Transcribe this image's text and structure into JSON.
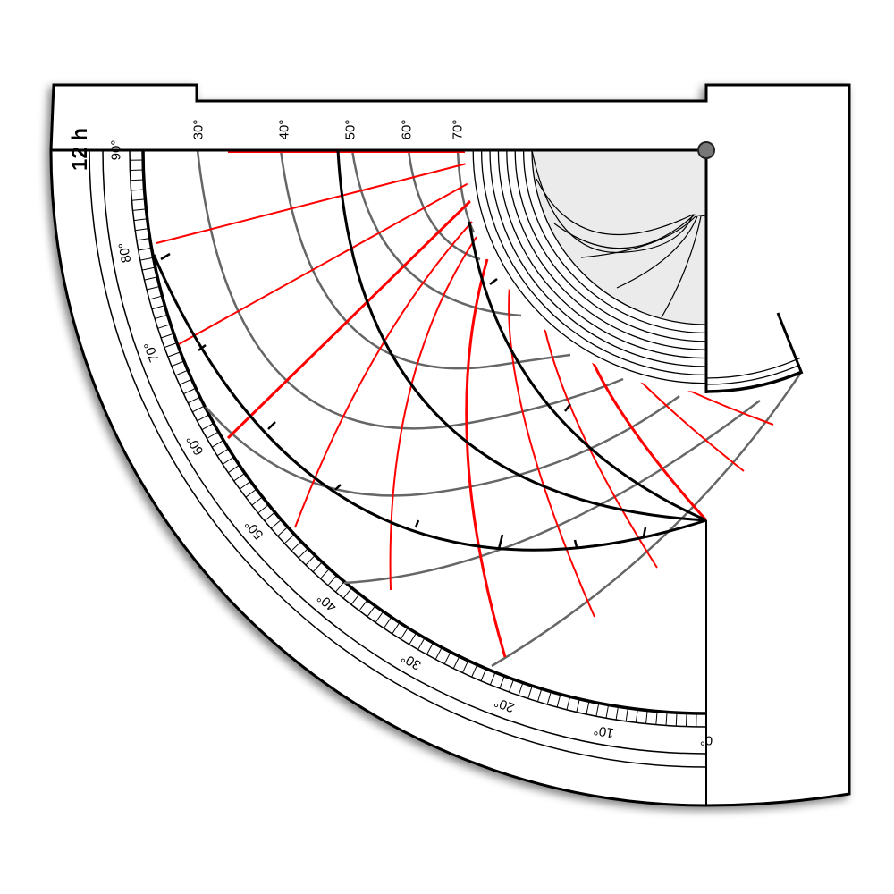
{
  "hour_label": "12 h",
  "top_scale_labels": [
    "30°",
    "40°",
    "50°",
    "60°",
    "70°"
  ],
  "arc_scale_labels": [
    "0°",
    "10°",
    "20°",
    "30°",
    "40°",
    "50°",
    "60°",
    "70°",
    "80°",
    "90°"
  ],
  "colors": {
    "hour_lines": "#ff0000",
    "altitude_arcs": "#666666",
    "ink": "#000000",
    "inner_fill": "#ebebeb"
  }
}
